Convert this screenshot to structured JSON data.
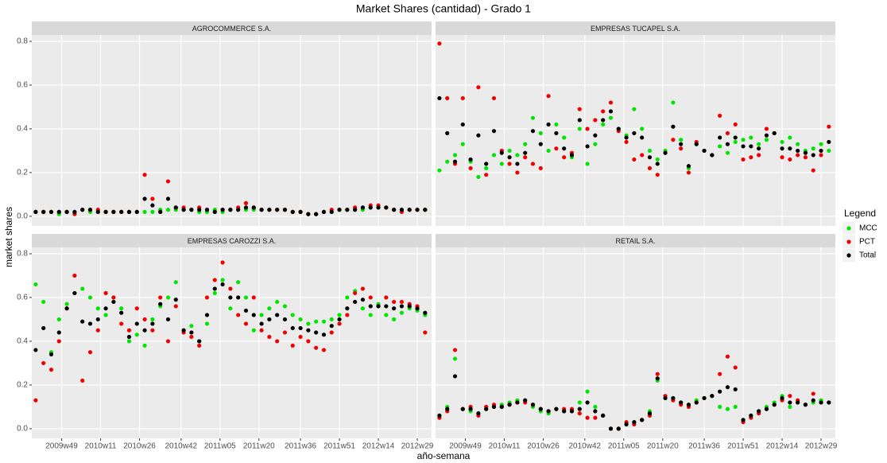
{
  "chart_data": {
    "type": "scatter",
    "title": "Market Shares (cantidad) - Grado 1",
    "x_label": "año-semana",
    "y_label": "market shares",
    "legend_title": "Legend",
    "legend": "right",
    "grid": true,
    "x": [
      0,
      3,
      6,
      9,
      12,
      15,
      18,
      21,
      24,
      27,
      30,
      33,
      36,
      39,
      42,
      45,
      48,
      51,
      54,
      57,
      60,
      63,
      66,
      69,
      72,
      75,
      78,
      81,
      84,
      87,
      90,
      93,
      96,
      99,
      102,
      105,
      108,
      111,
      114,
      117,
      120,
      123,
      126,
      129,
      132,
      135,
      138,
      141,
      144,
      147,
      150
    ],
    "xlim": [
      -1.5,
      152.5
    ],
    "xticks": [
      {
        "value": 10,
        "label": "2009w49"
      },
      {
        "value": 25,
        "label": "2010w11"
      },
      {
        "value": 40,
        "label": "2010w26"
      },
      {
        "value": 56,
        "label": "2010w42"
      },
      {
        "value": 71,
        "label": "2011w05"
      },
      {
        "value": 86,
        "label": "2011w20"
      },
      {
        "value": 102,
        "label": "2011w36"
      },
      {
        "value": 117,
        "label": "2011w51"
      },
      {
        "value": 132,
        "label": "2012w14"
      },
      {
        "value": 147,
        "label": "2012w29"
      }
    ],
    "ylim": [
      -0.044,
      0.829
    ],
    "yticks": [
      {
        "value": 0,
        "label": "0.0"
      },
      0.2,
      0.4,
      0.6,
      0.8
    ],
    "series": [
      {
        "name": "MCC",
        "color": "#00e600"
      },
      {
        "name": "PCT",
        "color": "#f00000"
      },
      {
        "name": "Total",
        "color": "#000000"
      }
    ],
    "facets": [
      {
        "title": "AGROCOMMERCE S.A.",
        "values": [
          [
            0.02,
            0.02,
            0.02,
            0.01,
            0.02,
            0.02,
            0.03,
            0.02,
            0.02,
            0.02,
            0.02,
            0.02,
            0.02,
            0.02,
            0.02,
            0.02,
            0.03,
            0.03,
            0.03,
            0.03,
            0.03,
            0.02,
            0.02,
            0.03,
            0.02,
            0.03,
            0.03,
            0.03,
            0.03,
            0.03,
            0.03,
            0.03,
            0.03,
            0.02,
            0.02,
            0.01,
            0.01,
            0.02,
            0.02,
            0.03,
            0.03,
            0.03,
            0.03,
            0.04,
            0.04,
            0.04,
            0.03,
            0.03,
            0.03,
            0.03,
            0.03
          ],
          [
            0.02,
            0.02,
            0.02,
            0.02,
            0.02,
            0.01,
            0.03,
            0.03,
            0.03,
            0.02,
            0.02,
            0.02,
            0.02,
            0.02,
            0.19,
            0.08,
            0.02,
            0.16,
            0.04,
            0.04,
            0.03,
            0.04,
            0.03,
            0.02,
            0.03,
            0.03,
            0.04,
            0.06,
            0.04,
            0.03,
            0.03,
            0.03,
            0.03,
            0.02,
            0.02,
            0.01,
            0.01,
            0.02,
            0.03,
            0.03,
            0.03,
            0.04,
            0.04,
            0.05,
            0.05,
            0.04,
            0.03,
            0.02,
            0.03,
            0.03,
            0.03
          ],
          [
            0.02,
            0.02,
            0.02,
            0.02,
            0.02,
            0.02,
            0.03,
            0.03,
            0.02,
            0.02,
            0.02,
            0.02,
            0.02,
            0.02,
            0.08,
            0.05,
            0.02,
            0.08,
            0.04,
            0.03,
            0.03,
            0.03,
            0.03,
            0.02,
            0.03,
            0.03,
            0.03,
            0.04,
            0.04,
            0.03,
            0.03,
            0.03,
            0.03,
            0.02,
            0.02,
            0.01,
            0.01,
            0.02,
            0.02,
            0.03,
            0.03,
            0.03,
            0.04,
            0.04,
            0.04,
            0.04,
            0.03,
            0.03,
            0.03,
            0.03,
            0.03
          ]
        ]
      },
      {
        "title": "EMPRESAS TUCAPEL S.A.",
        "values": [
          [
            0.21,
            0.25,
            0.28,
            0.33,
            0.25,
            0.18,
            0.22,
            0.28,
            0.24,
            0.3,
            0.28,
            0.33,
            0.45,
            0.38,
            0.3,
            0.42,
            0.36,
            0.27,
            0.4,
            0.24,
            0.33,
            0.42,
            0.45,
            0.4,
            0.37,
            0.49,
            0.4,
            0.3,
            0.26,
            0.3,
            0.52,
            0.35,
            0.22,
            0.33,
            0.3,
            0.28,
            0.32,
            0.29,
            0.34,
            0.35,
            0.36,
            0.33,
            0.35,
            0.38,
            0.34,
            0.36,
            0.33,
            0.3,
            0.31,
            0.33,
            0.3
          ],
          [
            0.79,
            0.54,
            0.24,
            0.54,
            0.22,
            0.59,
            0.19,
            0.54,
            0.3,
            0.24,
            0.2,
            0.27,
            0.24,
            0.22,
            0.55,
            0.31,
            0.27,
            0.29,
            0.49,
            0.4,
            0.44,
            0.48,
            0.52,
            0.39,
            0.34,
            0.26,
            0.28,
            0.22,
            0.19,
            0.29,
            0.35,
            0.31,
            0.2,
            0.34,
            0.3,
            0.28,
            0.46,
            0.38,
            0.42,
            0.26,
            0.27,
            0.28,
            0.4,
            0.38,
            0.27,
            0.26,
            0.28,
            0.27,
            0.21,
            0.28,
            0.41
          ],
          [
            0.54,
            0.38,
            0.25,
            0.42,
            0.26,
            0.37,
            0.24,
            0.39,
            0.29,
            0.27,
            0.24,
            0.29,
            0.39,
            0.33,
            0.42,
            0.38,
            0.31,
            0.28,
            0.44,
            0.32,
            0.37,
            0.44,
            0.48,
            0.4,
            0.36,
            0.38,
            0.36,
            0.27,
            0.24,
            0.29,
            0.41,
            0.33,
            0.23,
            0.33,
            0.3,
            0.28,
            0.36,
            0.33,
            0.36,
            0.32,
            0.32,
            0.31,
            0.37,
            0.38,
            0.31,
            0.31,
            0.3,
            0.29,
            0.28,
            0.3,
            0.34
          ]
        ]
      },
      {
        "title": "EMPRESAS CAROZZI S.A.",
        "values": [
          [
            0.66,
            0.58,
            0.35,
            0.5,
            0.57,
            0.62,
            0.64,
            0.6,
            0.55,
            0.52,
            0.6,
            0.55,
            0.4,
            0.43,
            0.38,
            0.5,
            0.56,
            0.6,
            0.67,
            0.45,
            0.47,
            0.4,
            0.48,
            0.62,
            0.68,
            0.55,
            0.67,
            0.6,
            0.45,
            0.52,
            0.55,
            0.58,
            0.56,
            0.52,
            0.5,
            0.48,
            0.49,
            0.49,
            0.5,
            0.52,
            0.6,
            0.63,
            0.55,
            0.52,
            0.57,
            0.52,
            0.5,
            0.53,
            0.55,
            0.54,
            0.52
          ],
          [
            0.13,
            0.3,
            0.27,
            0.4,
            0.55,
            0.7,
            0.22,
            0.35,
            0.45,
            0.62,
            0.6,
            0.48,
            0.45,
            0.55,
            0.5,
            0.45,
            0.6,
            0.4,
            0.56,
            0.44,
            0.42,
            0.38,
            0.6,
            0.68,
            0.76,
            0.64,
            0.52,
            0.48,
            0.6,
            0.45,
            0.42,
            0.4,
            0.44,
            0.38,
            0.42,
            0.4,
            0.37,
            0.36,
            0.44,
            0.48,
            0.52,
            0.62,
            0.64,
            0.6,
            0.56,
            0.6,
            0.58,
            0.58,
            0.57,
            0.56,
            0.44
          ],
          [
            0.36,
            0.46,
            0.34,
            0.44,
            0.55,
            0.62,
            0.49,
            0.48,
            0.5,
            0.55,
            0.58,
            0.53,
            0.42,
            0.48,
            0.45,
            0.48,
            0.57,
            0.5,
            0.59,
            0.45,
            0.44,
            0.4,
            0.52,
            0.64,
            0.66,
            0.6,
            0.6,
            0.54,
            0.52,
            0.48,
            0.5,
            0.52,
            0.5,
            0.46,
            0.46,
            0.45,
            0.44,
            0.43,
            0.47,
            0.5,
            0.55,
            0.58,
            0.59,
            0.56,
            0.56,
            0.56,
            0.55,
            0.56,
            0.56,
            0.55,
            0.53
          ]
        ]
      },
      {
        "title": "RETAIL S.A.",
        "values": [
          [
            0.06,
            0.1,
            0.32,
            0.09,
            0.08,
            0.07,
            0.09,
            0.1,
            0.11,
            0.12,
            0.13,
            0.13,
            0.1,
            0.08,
            0.07,
            0.09,
            0.08,
            0.08,
            0.12,
            0.17,
            0.1,
            0.06,
            0.0,
            0.0,
            0.02,
            0.03,
            0.04,
            0.08,
            0.22,
            0.14,
            0.14,
            0.12,
            0.11,
            0.13,
            0.14,
            0.15,
            0.1,
            0.09,
            0.1,
            0.04,
            0.06,
            0.08,
            0.1,
            0.12,
            0.15,
            0.1,
            0.12,
            0.11,
            0.12,
            0.13,
            0.12
          ],
          [
            0.05,
            0.08,
            0.36,
            0.09,
            0.1,
            0.06,
            0.1,
            0.11,
            0.1,
            0.11,
            0.12,
            0.12,
            0.11,
            0.09,
            0.08,
            0.09,
            0.09,
            0.09,
            0.07,
            0.05,
            0.05,
            0.06,
            0.0,
            0.0,
            0.03,
            0.02,
            0.04,
            0.06,
            0.25,
            0.15,
            0.13,
            0.11,
            0.1,
            0.12,
            0.14,
            0.15,
            0.25,
            0.33,
            0.28,
            0.03,
            0.05,
            0.07,
            0.09,
            0.11,
            0.13,
            0.15,
            0.13,
            0.11,
            0.16,
            0.12,
            0.12
          ],
          [
            0.06,
            0.09,
            0.24,
            0.09,
            0.09,
            0.07,
            0.09,
            0.1,
            0.1,
            0.11,
            0.12,
            0.13,
            0.11,
            0.09,
            0.08,
            0.09,
            0.08,
            0.08,
            0.09,
            0.12,
            0.08,
            0.06,
            0.0,
            0.0,
            0.02,
            0.03,
            0.04,
            0.07,
            0.23,
            0.14,
            0.14,
            0.12,
            0.11,
            0.12,
            0.14,
            0.15,
            0.17,
            0.19,
            0.18,
            0.04,
            0.06,
            0.08,
            0.09,
            0.11,
            0.14,
            0.12,
            0.12,
            0.11,
            0.13,
            0.12,
            0.12
          ]
        ]
      }
    ]
  }
}
